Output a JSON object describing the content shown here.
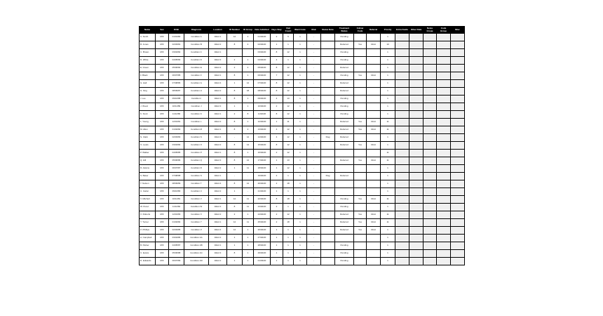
{
  "table": {
    "headers": [
      "Name",
      "Sex",
      "DOB",
      "Diagnosis",
      "Location",
      "ID Number",
      "ID Group",
      "Date Admitted",
      "Days Stay",
      "Visit Count",
      "Ward Code",
      "Risk",
      "Status Note",
      "Treatment Status",
      "Follow Code",
      "Referral",
      "Priority",
      "Extra Fields",
      "Other Data",
      "Notes Group",
      "Code Group",
      "Misc"
    ],
    "rows": [
      [
        "A. Smith",
        "M/F",
        "01/01/80",
        "Condition A",
        "Ward 1",
        "12",
        "4",
        "01/02/20",
        "2",
        "5",
        "1",
        "-",
        "",
        "Pending",
        "",
        "",
        "1",
        "",
        "",
        "",
        "",
        ""
      ],
      [
        "B. Jones",
        "M/F",
        "02/03/81",
        "Condition B",
        "Ward 2",
        "8",
        "4",
        "02/02/20",
        "1",
        "1",
        "1",
        "-",
        "",
        "Referred",
        "Yes",
        "Clinic",
        "10",
        "",
        "",
        "",
        "",
        ""
      ],
      [
        "C. Brown",
        "M/F",
        "03/04/82",
        "Condition C",
        "Ward 1",
        "",
        "",
        "03/02/20",
        "8",
        "12",
        "1",
        "-",
        "",
        "Pending",
        "",
        "",
        "1",
        "",
        "",
        "",
        "",
        ""
      ],
      [
        "D. White",
        "M/F",
        "04/05/83",
        "Condition D",
        "Ward 3",
        "2",
        "1",
        "04/02/20",
        "4",
        "1",
        "1",
        "-",
        "",
        "Pending",
        "",
        "",
        "1",
        "",
        "",
        "",
        "",
        ""
      ],
      [
        "E. Green",
        "M/F",
        "05/06/84",
        "Condition E",
        "Ward 2",
        "2",
        "4",
        "05/02/20",
        "8",
        "12",
        "1",
        "-",
        "",
        "Referred",
        "",
        "",
        "1",
        "",
        "",
        "",
        "",
        ""
      ],
      [
        "F. Black",
        "M/F",
        "06/07/85",
        "Condition F",
        "Ward 1",
        "8",
        "1",
        "06/02/20",
        "7",
        "12",
        "1",
        "-",
        "",
        "Pending",
        "Yes",
        "Clinic",
        "1",
        "",
        "",
        "",
        "",
        ""
      ],
      [
        "G. Hall",
        "M/F",
        "07/08/86",
        "Condition G",
        "Ward 4",
        "1",
        "12",
        "07/02/20",
        "8",
        "12",
        "1",
        "-",
        "",
        "Referred",
        "",
        "",
        "1",
        "",
        "",
        "",
        "",
        ""
      ],
      [
        "H. King",
        "M/F",
        "08/09/87",
        "Condition H",
        "Ward 2",
        "8",
        "18",
        "08/02/20",
        "8",
        "12",
        "1",
        "-",
        "",
        "Referred",
        "",
        "",
        "1",
        "",
        "",
        "",
        "",
        ""
      ],
      [
        "I. Lee",
        "M/F",
        "09/10/88",
        "Condition I",
        "Ward 1",
        "8",
        "1",
        "09/02/20",
        "4",
        "13",
        "1",
        "-",
        "",
        "Pending",
        "",
        "",
        "1",
        "",
        "",
        "",
        "",
        ""
      ],
      [
        "J. Wood",
        "M/F",
        "10/11/89",
        "Condition J",
        "Ward 3",
        "1",
        "1",
        "10/02/20",
        "2",
        "12",
        "1",
        "-",
        "",
        "Pending",
        "",
        "",
        "1",
        "",
        "",
        "",
        "",
        ""
      ],
      [
        "K. Scott",
        "M/F",
        "11/12/80",
        "Condition K",
        "Ward 1",
        "2",
        "8",
        "11/02/20",
        "8",
        "12",
        "1",
        "-",
        "",
        "Pending",
        "",
        "",
        "1",
        "",
        "",
        "",
        "",
        ""
      ],
      [
        "L. Young",
        "M/F",
        "12/01/81",
        "Condition L",
        "Ward 2",
        "8",
        "1",
        "12/02/20",
        "1",
        "11",
        "1",
        "-",
        "",
        "Referred",
        "Yes",
        "Clinic",
        "11",
        "",
        "",
        "",
        "",
        ""
      ],
      [
        "M. Allen",
        "M/F",
        "01/02/82",
        "Condition M",
        "Ward 1",
        "8",
        "2",
        "13/02/20",
        "4",
        "12",
        "1",
        "-",
        "",
        "Referred",
        "Yes",
        "Clinic",
        "11",
        "",
        "",
        "",
        "",
        ""
      ],
      [
        "N. Clark",
        "M/F",
        "02/03/83",
        "Condition N",
        "Ward 4",
        "-",
        "12",
        "14/02/20",
        "4",
        "12",
        "1",
        "-",
        "Flag",
        "Referred",
        "",
        "",
        "1",
        "",
        "",
        "",
        "",
        ""
      ],
      [
        "O. Lewis",
        "M/F",
        "03/04/84",
        "Condition O",
        "Ward 2",
        "8",
        "14",
        "15/02/20",
        "8",
        "12",
        "1",
        "-",
        "",
        "Referred",
        "Yes",
        "Clinic",
        "1",
        "",
        "",
        "",
        "",
        ""
      ],
      [
        "P. Walker",
        "M/F",
        "04/05/85",
        "Condition P",
        "Ward 1",
        "8",
        "1",
        "16/02/20",
        "2",
        "12",
        "1",
        "-",
        "",
        "",
        "",
        "",
        "11",
        "",
        "",
        "",
        "",
        ""
      ],
      [
        "Q. Hill",
        "M/F",
        "05/06/86",
        "Condition Q",
        "Ward 3",
        "8",
        "12",
        "17/02/20",
        "1",
        "13",
        "1",
        "-",
        "",
        "Referred",
        "Yes",
        "Clinic",
        "11",
        "",
        "",
        "",
        "",
        ""
      ],
      [
        "R. Adams",
        "M/F",
        "06/07/87",
        "Condition R",
        "Ward 2",
        "1",
        "11",
        "18/02/20",
        "1",
        "12",
        "1",
        "-",
        "",
        "",
        "",
        "",
        "1",
        "",
        "",
        "",
        "",
        ""
      ],
      [
        "S. Baker",
        "M/F",
        "07/08/88",
        "Condition S",
        "Ward 1",
        "-",
        "-",
        "19/02/20",
        "2",
        "1",
        "1",
        "-",
        "Flag",
        "Referred",
        "",
        "",
        "1",
        "",
        "",
        "",
        "",
        ""
      ],
      [
        "T. Nelson",
        "M/F",
        "08/09/89",
        "Condition T",
        "Ward 4",
        "8",
        "12",
        "20/02/20",
        "2",
        "18",
        "1",
        "-",
        "",
        "",
        "",
        "",
        "1",
        "",
        "",
        "",
        "",
        ""
      ],
      [
        "U. Carter",
        "M/F",
        "09/10/80",
        "Condition U",
        "Ward 2",
        "1",
        "-",
        "21/02/20",
        "1",
        "1",
        "1",
        "-",
        "",
        "",
        "",
        "",
        "1",
        "",
        "",
        "",
        "",
        ""
      ],
      [
        "V. Mitchell",
        "M/F",
        "10/11/81",
        "Condition V",
        "Ward 1",
        "12",
        "11",
        "22/02/20",
        "8",
        "18",
        "1",
        "-",
        "",
        "Pending",
        "Yes",
        "Clinic",
        "11",
        "",
        "",
        "",
        "",
        ""
      ],
      [
        "W. Perez",
        "M/F",
        "11/12/82",
        "Condition W",
        "Ward 3",
        "8",
        "11",
        "23/02/20",
        "2",
        "1",
        "1",
        "-",
        "",
        "Pending",
        "",
        "",
        "1",
        "",
        "",
        "",
        "",
        ""
      ],
      [
        "X. Roberts",
        "M/F",
        "12/01/83",
        "Condition X",
        "Ward 2",
        "2",
        "1",
        "24/02/20",
        "2",
        "12",
        "1",
        "-",
        "",
        "Referred",
        "Yes",
        "Clinic",
        "11",
        "",
        "",
        "",
        "",
        ""
      ],
      [
        "Y. Turner",
        "M/F",
        "01/02/84",
        "Condition Y",
        "Ward 1",
        "12",
        "11",
        "25/02/20",
        "2",
        "18",
        "1",
        "-",
        "",
        "Referred",
        "Yes",
        "Clinic",
        "11",
        "",
        "",
        "",
        "",
        ""
      ],
      [
        "Z. Phillips",
        "M/F",
        "02/03/85",
        "Condition Z",
        "Ward 4",
        "12",
        "1",
        "26/02/20",
        "1",
        "1",
        "1",
        "-",
        "",
        "Referred",
        "Yes",
        "Clinic",
        "1",
        "",
        "",
        "",
        "",
        ""
      ],
      [
        "A. Campbell",
        "M/F",
        "03/04/86",
        "Condition AA",
        "Ward 2",
        "1",
        "1",
        "27/02/20",
        "1",
        "1",
        "1",
        "-",
        "",
        "",
        "",
        "",
        "1",
        "",
        "",
        "",
        "",
        ""
      ],
      [
        "B. Parker",
        "M/F",
        "04/05/87",
        "Condition AB",
        "Ward 1",
        "1",
        "1",
        "28/02/20",
        "1",
        "1",
        "1",
        "-",
        "",
        "Pending",
        "",
        "",
        "1",
        "",
        "",
        "",
        "",
        ""
      ],
      [
        "C. Evans",
        "M/F",
        "05/06/88",
        "Condition AC",
        "Ward 3",
        "8",
        "1",
        "29/02/20",
        "1",
        "1",
        "1",
        "-",
        "",
        "Pending",
        "",
        "",
        "1",
        "",
        "",
        "",
        "",
        ""
      ],
      [
        "D. Edwards",
        "M/F",
        "06/07/89",
        "Condition AD",
        "Ward 2",
        "1",
        "1",
        "01/03/20",
        "1",
        "1",
        "1",
        "-",
        "",
        "Pending",
        "",
        "",
        "1",
        "",
        "",
        "",
        "",
        ""
      ]
    ]
  }
}
